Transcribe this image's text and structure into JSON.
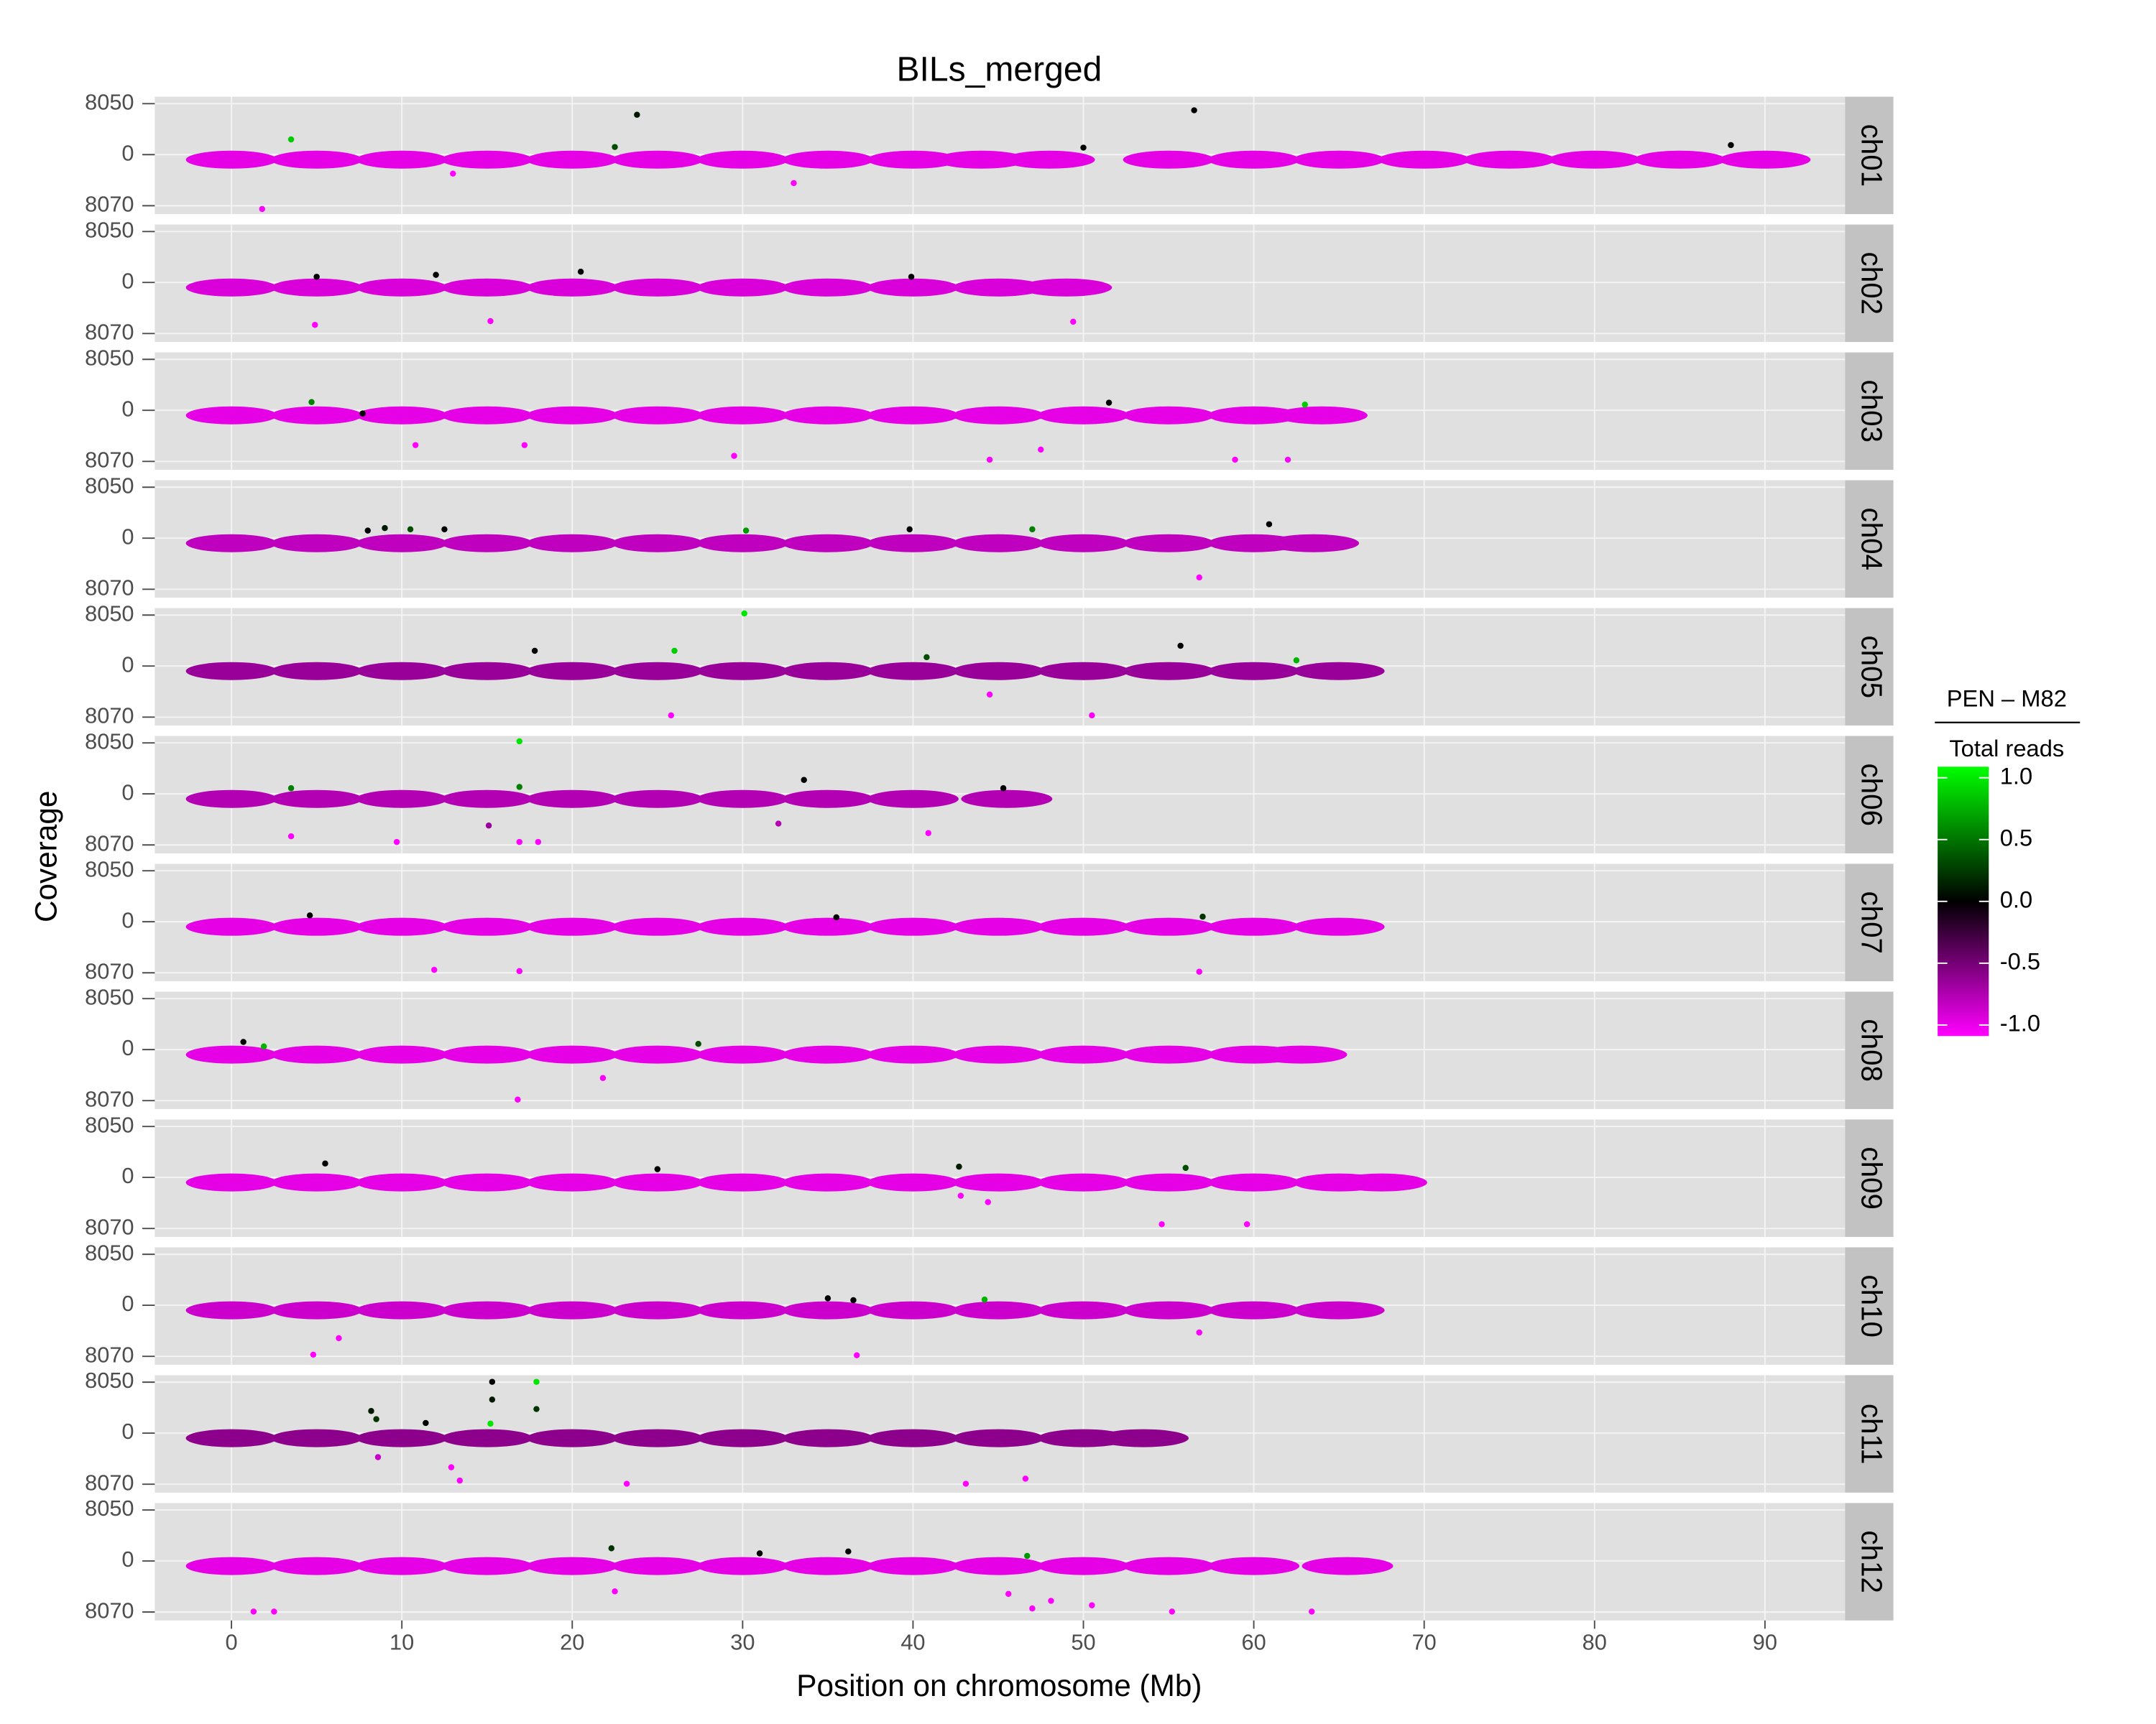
{
  "chart_data": {
    "type": "scatter",
    "title": "BILs_merged",
    "x_label": "Position on chromosome (Mb)",
    "y_label": "Coverage",
    "xlim": [
      -4.5,
      94.7
    ],
    "xticks": [
      0,
      10,
      20,
      30,
      40,
      50,
      60,
      70,
      80,
      90
    ],
    "ylim": [
      -9400,
      9150
    ],
    "yticks": [
      {
        "value": 8050,
        "label": "8050"
      },
      0,
      {
        "value": -8070,
        "label": "8070"
      }
    ],
    "grid": true,
    "legend_title_top": "PEN – M82",
    "legend_title_bottom": "Total reads",
    "color_scale": {
      "stops": [
        -1,
        0,
        1
      ],
      "colors": [
        "#ff00ff",
        "#000000",
        "#00ff00"
      ],
      "ticks": [
        {
          "value": 1,
          "label": "1.0"
        },
        0.5,
        {
          "value": 0,
          "label": "0.0"
        },
        -0.5,
        {
          "value": -1,
          "label": "-1.0"
        }
      ]
    },
    "panels": [
      {
        "label": "ch01",
        "band": {
          "x": [
            0,
            5,
            10,
            15,
            20,
            25,
            30,
            35,
            40,
            44,
            48,
            55,
            60,
            65,
            70,
            75,
            80,
            85,
            90
          ],
          "y": [
            -800,
            -800,
            -800,
            -800,
            -800,
            -800,
            -800,
            -800,
            -800,
            -800,
            -800,
            -800,
            -800,
            -800,
            -800,
            -800,
            -800,
            -800,
            -800
          ],
          "color_values": [
            -0.9,
            -0.9,
            -0.9,
            -0.9,
            -0.9,
            -0.9,
            -0.9,
            -0.9,
            -0.9,
            -0.9,
            -0.9,
            -0.9,
            -0.9,
            -0.9,
            -0.9,
            -0.9,
            -0.9,
            -0.9,
            -0.9
          ]
        },
        "points": {
          "x": [
            1.8,
            3.5,
            22.5,
            23.8,
            56.5,
            50,
            88,
            33,
            13
          ],
          "y": [
            -8600,
            2400,
            1200,
            6300,
            7000,
            1100,
            1500,
            -4500,
            -3000
          ],
          "color_values": [
            -1,
            0.8,
            0.3,
            0.1,
            0,
            0,
            0,
            -1,
            -1
          ]
        }
      },
      {
        "label": "ch02",
        "band": {
          "x": [
            0,
            5,
            10,
            15,
            20,
            25,
            30,
            35,
            40,
            45,
            49
          ],
          "y": [
            -800,
            -800,
            -800,
            -800,
            -800,
            -800,
            -800,
            -800,
            -800,
            -800,
            -800
          ],
          "color_values": [
            -0.85,
            -0.85,
            -0.85,
            -0.85,
            -0.85,
            -0.85,
            -0.85,
            -0.85,
            -0.85,
            -0.85,
            -0.85
          ]
        },
        "points": {
          "x": [
            4.9,
            15.2,
            20.5,
            12,
            39.9,
            49.4,
            5
          ],
          "y": [
            -6700,
            -6100,
            1700,
            1200,
            900,
            -6200,
            900
          ],
          "color_values": [
            -1,
            -1,
            0,
            0,
            0,
            -1,
            0
          ]
        }
      },
      {
        "label": "ch03",
        "band": {
          "x": [
            0,
            5,
            10,
            15,
            20,
            25,
            30,
            35,
            40,
            45,
            50,
            55,
            60,
            64
          ],
          "y": [
            -800,
            -800,
            -800,
            -800,
            -800,
            -800,
            -800,
            -800,
            -800,
            -800,
            -800,
            -800,
            -800,
            -800
          ],
          "color_values": [
            -0.9,
            -0.9,
            -0.9,
            -0.9,
            -0.9,
            -0.9,
            -0.9,
            -0.9,
            -0.9,
            -0.9,
            -0.9,
            -0.9,
            -0.9,
            -0.9
          ]
        },
        "points": {
          "x": [
            4.7,
            51.5,
            63,
            10.8,
            17.2,
            29.5,
            44.5,
            47.5,
            58.9,
            62,
            7.7
          ],
          "y": [
            1300,
            1200,
            900,
            -5500,
            -5500,
            -7200,
            -7800,
            -6200,
            -7800,
            -7800,
            -500
          ],
          "color_values": [
            0.5,
            0,
            0.8,
            -1,
            -1,
            -1,
            -1,
            -1,
            -1,
            -1,
            0
          ]
        }
      },
      {
        "label": "ch04",
        "band": {
          "x": [
            0,
            5,
            10,
            15,
            20,
            25,
            30,
            35,
            40,
            45,
            50,
            55,
            60,
            63.5
          ],
          "y": [
            -800,
            -800,
            -800,
            -800,
            -800,
            -800,
            -800,
            -800,
            -800,
            -800,
            -800,
            -800,
            -800,
            -800
          ],
          "color_values": [
            -0.75,
            -0.75,
            -0.75,
            -0.75,
            -0.75,
            -0.75,
            -0.75,
            -0.75,
            -0.75,
            -0.75,
            -0.75,
            -0.75,
            -0.75,
            -0.75
          ]
        },
        "points": {
          "x": [
            8,
            9,
            10.5,
            12.5,
            30.2,
            39.8,
            47,
            60.9,
            56.8
          ],
          "y": [
            1200,
            1600,
            1400,
            1400,
            1200,
            1400,
            1400,
            2200,
            -6200
          ],
          "color_values": [
            0,
            0.1,
            0.3,
            0,
            0.6,
            0,
            0.5,
            0,
            -1
          ]
        }
      },
      {
        "label": "ch05",
        "band": {
          "x": [
            0,
            5,
            10,
            15,
            20,
            25,
            30,
            35,
            40,
            45,
            50,
            55,
            60,
            65
          ],
          "y": [
            -800,
            -800,
            -800,
            -800,
            -800,
            -800,
            -800,
            -800,
            -800,
            -800,
            -800,
            -800,
            -800,
            -800
          ],
          "color_values": [
            -0.6,
            -0.6,
            -0.6,
            -0.6,
            -0.6,
            -0.6,
            -0.6,
            -0.6,
            -0.6,
            -0.6,
            -0.6,
            -0.6,
            -0.6,
            -0.6
          ]
        },
        "points": {
          "x": [
            30.1,
            26,
            17.8,
            40.8,
            55.7,
            62.5,
            25.8,
            44.5,
            50.5
          ],
          "y": [
            8300,
            2400,
            2400,
            1400,
            3200,
            900,
            -7800,
            -4500,
            -7800
          ],
          "color_values": [
            0.9,
            0.8,
            0,
            0.3,
            0,
            0.7,
            -1,
            -1,
            -1
          ]
        }
      },
      {
        "label": "ch06",
        "band": {
          "x": [
            0,
            5,
            10,
            15,
            20,
            25,
            30,
            35,
            40,
            45.5
          ],
          "y": [
            -800,
            -800,
            -800,
            -800,
            -800,
            -800,
            -800,
            -800,
            -800,
            -800
          ],
          "color_values": [
            -0.7,
            -0.7,
            -0.7,
            -0.7,
            -0.7,
            -0.7,
            -0.7,
            -0.7,
            -0.7,
            -0.7
          ]
        },
        "points": {
          "x": [
            16.9,
            16.9,
            3.5,
            33.6,
            45.3,
            3.5,
            9.7,
            16.9,
            18,
            15.1,
            32.1,
            40.9
          ],
          "y": [
            8300,
            1100,
            900,
            2200,
            900,
            -6700,
            -7600,
            -7600,
            -7600,
            -5000,
            -4700,
            -6200
          ],
          "color_values": [
            0.9,
            0.5,
            0.5,
            0,
            0,
            -1,
            -1,
            -1,
            -1,
            -0.6,
            -0.7,
            -1
          ]
        }
      },
      {
        "label": "ch07",
        "band": {
          "x": [
            0,
            5,
            10,
            15,
            20,
            25,
            30,
            35,
            40,
            45,
            50,
            55,
            60,
            65
          ],
          "y": [
            -800,
            -800,
            -800,
            -800,
            -800,
            -800,
            -800,
            -800,
            -800,
            -800,
            -800,
            -800,
            -800,
            -800
          ],
          "color_values": [
            -0.9,
            -0.9,
            -0.9,
            -0.9,
            -0.9,
            -0.9,
            -0.9,
            -0.9,
            -0.9,
            -0.9,
            -0.9,
            -0.9,
            -0.9,
            -0.9
          ]
        },
        "points": {
          "x": [
            4.6,
            35.5,
            57,
            11.9,
            16.9,
            56.8
          ],
          "y": [
            1000,
            700,
            800,
            -7600,
            -7800,
            -7900
          ],
          "color_values": [
            0,
            0,
            0.2,
            -1,
            -1,
            -1
          ]
        }
      },
      {
        "label": "ch08",
        "band": {
          "x": [
            0,
            5,
            10,
            15,
            20,
            25,
            30,
            35,
            40,
            45,
            50,
            55,
            60,
            62.8
          ],
          "y": [
            -800,
            -800,
            -800,
            -800,
            -800,
            -800,
            -800,
            -800,
            -800,
            -800,
            -800,
            -800,
            -800,
            -800
          ],
          "color_values": [
            -0.9,
            -0.9,
            -0.9,
            -0.9,
            -0.9,
            -0.9,
            -0.9,
            -0.9,
            -0.9,
            -0.9,
            -0.9,
            -0.9,
            -0.9,
            -0.9
          ]
        },
        "points": {
          "x": [
            0.7,
            1.9,
            27.4,
            16.8,
            21.8
          ],
          "y": [
            1200,
            500,
            900,
            -7900,
            -4500
          ],
          "color_values": [
            0,
            0.7,
            0.3,
            -1,
            -1
          ]
        }
      },
      {
        "label": "ch09",
        "band": {
          "x": [
            0,
            5,
            10,
            15,
            20,
            25,
            30,
            35,
            40,
            45,
            50,
            55,
            60,
            65,
            67.5
          ],
          "y": [
            -800,
            -800,
            -800,
            -800,
            -800,
            -800,
            -800,
            -800,
            -800,
            -800,
            -800,
            -800,
            -800,
            -800,
            -800
          ],
          "color_values": [
            -0.9,
            -0.9,
            -0.9,
            -0.9,
            -0.9,
            -0.9,
            -0.9,
            -0.9,
            -0.9,
            -0.9,
            -0.9,
            -0.9,
            -0.9,
            -0.9,
            -0.9
          ]
        },
        "points": {
          "x": [
            5.5,
            25,
            42.7,
            56,
            54.6,
            59.6,
            44.4,
            42.8
          ],
          "y": [
            2200,
            1300,
            1700,
            1500,
            -7400,
            -7400,
            -3900,
            -2900
          ],
          "color_values": [
            0,
            0,
            0.1,
            0.3,
            -1,
            -1,
            -1,
            -1
          ]
        }
      },
      {
        "label": "ch10",
        "band": {
          "x": [
            0,
            5,
            10,
            15,
            20,
            25,
            30,
            35,
            40,
            45,
            50,
            55,
            60,
            65
          ],
          "y": [
            -800,
            -800,
            -800,
            -800,
            -800,
            -800,
            -800,
            -800,
            -800,
            -800,
            -800,
            -800,
            -800,
            -800
          ],
          "color_values": [
            -0.8,
            -0.8,
            -0.8,
            -0.8,
            -0.8,
            -0.8,
            -0.8,
            -0.8,
            -0.8,
            -0.8,
            -0.8,
            -0.8,
            -0.8,
            -0.8
          ]
        },
        "points": {
          "x": [
            35,
            44.2,
            36.5,
            4.8,
            6.3,
            36.7,
            56.8
          ],
          "y": [
            1100,
            900,
            800,
            -7800,
            -5200,
            -7900,
            -4300
          ],
          "color_values": [
            0,
            0.7,
            0,
            -1,
            -1,
            -1,
            -1
          ]
        }
      },
      {
        "label": "ch11",
        "band": {
          "x": [
            0,
            5,
            10,
            15,
            20,
            25,
            30,
            35,
            40,
            45,
            50,
            53.5
          ],
          "y": [
            -800,
            -800,
            -800,
            -800,
            -800,
            -800,
            -800,
            -800,
            -800,
            -800,
            -800,
            -800
          ],
          "color_values": [
            -0.55,
            -0.55,
            -0.55,
            -0.55,
            -0.55,
            -0.55,
            -0.55,
            -0.55,
            -0.55,
            -0.55,
            -0.55,
            -0.55
          ]
        },
        "points": {
          "x": [
            15.3,
            17.9,
            15.3,
            17.9,
            15.2,
            8.2,
            8.5,
            11.4,
            12.9,
            13.4,
            23.2,
            43.1,
            46.6,
            8.6
          ],
          "y": [
            8100,
            8100,
            5300,
            3800,
            1500,
            3500,
            2200,
            1600,
            -5400,
            -7500,
            -8000,
            -8000,
            -7200,
            -3800
          ],
          "color_values": [
            0,
            0.9,
            0.1,
            0.2,
            0.9,
            0.1,
            0.2,
            0,
            -1,
            -1,
            -1,
            -1,
            -1,
            -0.8
          ]
        }
      },
      {
        "label": "ch12",
        "band": {
          "x": [
            0,
            5,
            10,
            15,
            20,
            25,
            30,
            35,
            40,
            45,
            50,
            55,
            60,
            65.5
          ],
          "y": [
            -800,
            -800,
            -800,
            -800,
            -800,
            -800,
            -800,
            -800,
            -800,
            -800,
            -800,
            -800,
            -800,
            -800
          ],
          "color_values": [
            -0.9,
            -0.9,
            -0.9,
            -0.9,
            -0.9,
            -0.9,
            -0.9,
            -0.9,
            -0.9,
            -0.9,
            -0.9,
            -0.9,
            -0.9,
            -0.9
          ]
        },
        "points": {
          "x": [
            22.3,
            31,
            36.2,
            46.7,
            1.3,
            2.5,
            22.5,
            45.6,
            47,
            48.1,
            55.2,
            63.4,
            50.5
          ],
          "y": [
            2000,
            1200,
            1500,
            800,
            -8000,
            -8000,
            -4800,
            -5200,
            -7500,
            -6300,
            -8000,
            -8000,
            -7000
          ],
          "color_values": [
            0.2,
            0,
            0,
            0.6,
            -1,
            -1,
            -1,
            -1,
            -1,
            -1,
            -1,
            -1,
            -1
          ]
        }
      }
    ]
  }
}
